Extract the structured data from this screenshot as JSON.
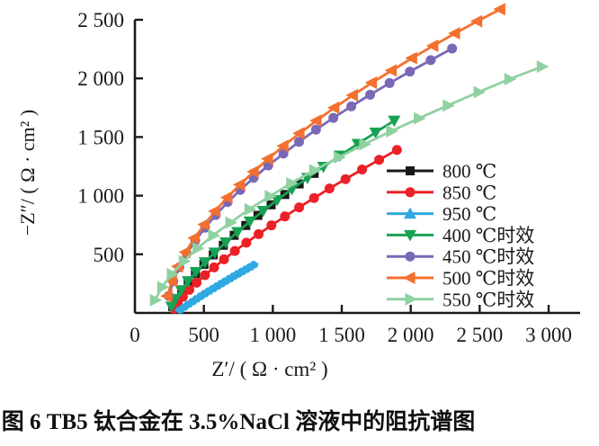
{
  "figure": {
    "caption": "图 6  TB5 钛合金在 3.5%NaCl 溶液中的阻抗谱图"
  },
  "chart_data": {
    "type": "line",
    "title": "",
    "xlabel": "Z′/ ( Ω · cm² )",
    "ylabel": "−Z″/ ( Ω · cm² )",
    "xlim": [
      0,
      3230
    ],
    "ylim": [
      0,
      2550
    ],
    "grid": false,
    "legend_position": "right-middle",
    "x_ticks": [
      {
        "value": 0,
        "label": "0"
      },
      {
        "value": 500,
        "label": "500"
      },
      {
        "value": 1000,
        "label": "1 000"
      },
      {
        "value": 1500,
        "label": "1 500"
      },
      {
        "value": 2000,
        "label": "2 000"
      },
      {
        "value": 2500,
        "label": "2 500"
      },
      {
        "value": 3000,
        "label": "3 000"
      }
    ],
    "y_ticks": [
      {
        "value": 500,
        "label": "500"
      },
      {
        "value": 1000,
        "label": "1 000"
      },
      {
        "value": 1500,
        "label": "1 500"
      },
      {
        "value": 2000,
        "label": "2 000"
      },
      {
        "value": 2500,
        "label": "2 500"
      }
    ],
    "series": [
      {
        "name": "800 ℃",
        "color": "#1a1a1a",
        "marker": "square",
        "line_width": 2.8,
        "points": [
          [
            274,
            54
          ],
          [
            301,
            116
          ],
          [
            339,
            186
          ],
          [
            386,
            260
          ],
          [
            439,
            335
          ],
          [
            500,
            414
          ],
          [
            568,
            495
          ],
          [
            641,
            577
          ],
          [
            720,
            662
          ],
          [
            804,
            746
          ],
          [
            892,
            832
          ],
          [
            988,
            922
          ],
          [
            1087,
            1010
          ],
          [
            1191,
            1100
          ],
          [
            1300,
            1190
          ]
        ]
      },
      {
        "name": "850 ℃",
        "color": "#EC2027",
        "marker": "circle",
        "line_width": 2.8,
        "points": [
          [
            283,
            36
          ],
          [
            311,
            85
          ],
          [
            348,
            138
          ],
          [
            394,
            197
          ],
          [
            447,
            258
          ],
          [
            508,
            322
          ],
          [
            574,
            388
          ],
          [
            646,
            457
          ],
          [
            725,
            528
          ],
          [
            808,
            599
          ],
          [
            897,
            672
          ],
          [
            990,
            747
          ],
          [
            1088,
            823
          ],
          [
            1191,
            900
          ],
          [
            1299,
            980
          ],
          [
            1411,
            1061
          ],
          [
            1527,
            1141
          ],
          [
            1647,
            1223
          ],
          [
            1771,
            1306
          ],
          [
            1900,
            1390
          ]
        ]
      },
      {
        "name": "950 ℃",
        "color": "#2FA9E1",
        "marker": "none",
        "legend_marker": "triangle-up",
        "line_width": 7,
        "points": [
          [
            305,
            5
          ],
          [
            320,
            28
          ],
          [
            335,
            22
          ],
          [
            350,
            52
          ],
          [
            365,
            45
          ],
          [
            380,
            78
          ],
          [
            395,
            70
          ],
          [
            410,
            100
          ],
          [
            425,
            92
          ],
          [
            440,
            124
          ],
          [
            455,
            115
          ],
          [
            470,
            147
          ],
          [
            485,
            138
          ],
          [
            500,
            170
          ],
          [
            515,
            160
          ],
          [
            530,
            192
          ],
          [
            545,
            182
          ],
          [
            560,
            213
          ],
          [
            575,
            203
          ],
          [
            590,
            234
          ],
          [
            605,
            224
          ],
          [
            620,
            255
          ],
          [
            635,
            245
          ],
          [
            650,
            276
          ],
          [
            665,
            266
          ],
          [
            680,
            297
          ],
          [
            695,
            287
          ],
          [
            710,
            318
          ],
          [
            725,
            308
          ],
          [
            740,
            338
          ],
          [
            755,
            328
          ],
          [
            770,
            358
          ],
          [
            785,
            348
          ],
          [
            800,
            378
          ],
          [
            815,
            368
          ],
          [
            830,
            398
          ],
          [
            845,
            388
          ],
          [
            860,
            418
          ],
          [
            870,
            408
          ],
          [
            875,
            430
          ]
        ]
      },
      {
        "name": "400 ℃时效",
        "color": "#17A253",
        "marker": "triangle-down",
        "line_width": 2.8,
        "points": [
          [
            265,
            55
          ],
          [
            294,
            120
          ],
          [
            335,
            194
          ],
          [
            385,
            271
          ],
          [
            442,
            349
          ],
          [
            508,
            432
          ],
          [
            579,
            515
          ],
          [
            659,
            602
          ],
          [
            744,
            690
          ],
          [
            834,
            780
          ],
          [
            930,
            870
          ],
          [
            1032,
            963
          ],
          [
            1138,
            1055
          ],
          [
            1251,
            1151
          ],
          [
            1367,
            1246
          ],
          [
            1487,
            1342
          ],
          [
            1616,
            1442
          ],
          [
            1745,
            1539
          ],
          [
            1880,
            1640
          ]
        ]
      },
      {
        "name": "450 ℃时效",
        "color": "#7A68B7",
        "marker": "circle",
        "line_width": 2.8,
        "points": [
          [
            246,
            145
          ],
          [
            278,
            270
          ],
          [
            322,
            389
          ],
          [
            376,
            505
          ],
          [
            438,
            617
          ],
          [
            509,
            727
          ],
          [
            586,
            835
          ],
          [
            673,
            945
          ],
          [
            764,
            1049
          ],
          [
            861,
            1152
          ],
          [
            967,
            1258
          ],
          [
            1077,
            1359
          ],
          [
            1190,
            1459
          ],
          [
            1313,
            1563
          ],
          [
            1439,
            1663
          ],
          [
            1569,
            1762
          ],
          [
            1706,
            1861
          ],
          [
            1847,
            1960
          ],
          [
            1994,
            2058
          ],
          [
            2145,
            2156
          ],
          [
            2300,
            2255
          ]
        ]
      },
      {
        "name": "500 ℃时效",
        "color": "#F4702E",
        "marker": "triangle-left",
        "line_width": 2.8,
        "points": [
          [
            236,
            144
          ],
          [
            269,
            275
          ],
          [
            313,
            397
          ],
          [
            368,
            518
          ],
          [
            432,
            638
          ],
          [
            504,
            754
          ],
          [
            582,
            868
          ],
          [
            670,
            984
          ],
          [
            762,
            1094
          ],
          [
            862,
            1205
          ],
          [
            966,
            1314
          ],
          [
            1078,
            1424
          ],
          [
            1194,
            1532
          ],
          [
            1318,
            1640
          ],
          [
            1447,
            1750
          ],
          [
            1581,
            1857
          ],
          [
            1719,
            1963
          ],
          [
            1863,
            2068
          ],
          [
            2011,
            2173
          ],
          [
            2164,
            2279
          ],
          [
            2322,
            2385
          ],
          [
            2483,
            2488
          ],
          [
            2650,
            2590
          ]
        ]
      },
      {
        "name": "550 ℃时效",
        "color": "#90D1A1",
        "marker": "triangle-right",
        "line_width": 2.8,
        "points": [
          [
            145,
            109
          ],
          [
            197,
            220
          ],
          [
            267,
            330
          ],
          [
            354,
            441
          ],
          [
            454,
            551
          ],
          [
            567,
            661
          ],
          [
            692,
            771
          ],
          [
            830,
            884
          ],
          [
            977,
            995
          ],
          [
            1133,
            1105
          ],
          [
            1300,
            1216
          ],
          [
            1478,
            1327
          ],
          [
            1662,
            1438
          ],
          [
            1858,
            1550
          ],
          [
            2058,
            1659
          ],
          [
            2268,
            1769
          ],
          [
            2491,
            1883
          ],
          [
            2715,
            1994
          ],
          [
            2950,
            2100
          ]
        ]
      }
    ]
  }
}
